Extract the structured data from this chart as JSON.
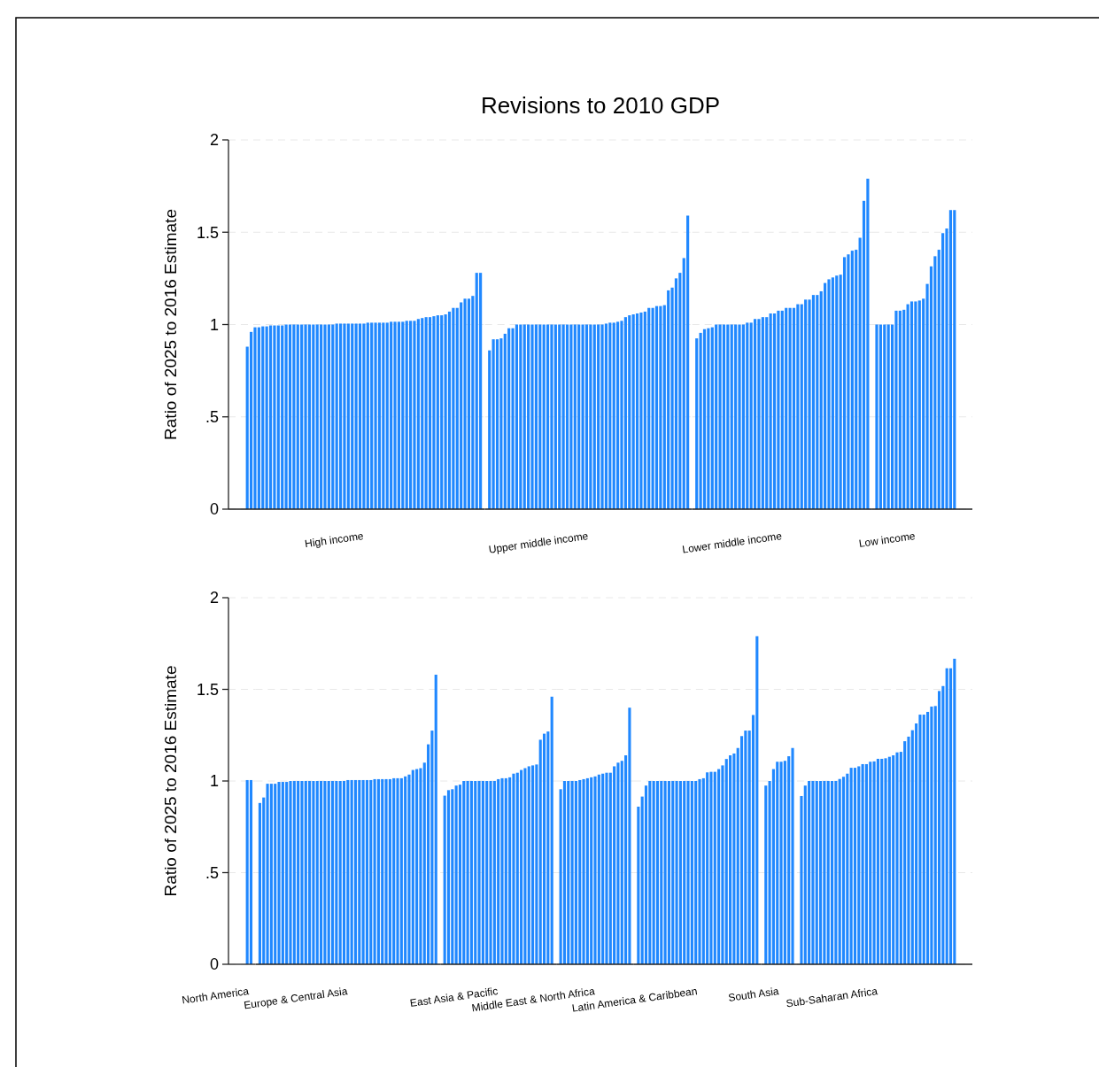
{
  "chart_data": [
    {
      "type": "bar",
      "ylabel": "Ratio of 2025 to 2016 Estimate",
      "xlabel": "High income",
      "color": "#2088ff",
      "ylim": [
        0,
        2
      ],
      "yticks": [
        0,
        {
          "value": 0.5,
          "label": ".5"
        },
        1,
        1.5,
        2
      ],
      "grid": "y",
      "tick_labels": "y",
      "categories": [
        null,
        null,
        null,
        null,
        null,
        null,
        null,
        null,
        null,
        null,
        null,
        null,
        null,
        null,
        null,
        null,
        null,
        null,
        null,
        null,
        null,
        null,
        null,
        null,
        null,
        null,
        null,
        null,
        null,
        null,
        null,
        null,
        null,
        null,
        null,
        null,
        null,
        null,
        null,
        null,
        null,
        null,
        null,
        null,
        null,
        null,
        null,
        null,
        null,
        null,
        null,
        null,
        null,
        null,
        null,
        null,
        null,
        null,
        null,
        null,
        null
      ],
      "values": [
        0.88,
        0.96,
        0.985,
        0.985,
        0.99,
        0.99,
        0.995,
        0.995,
        0.995,
        0.995,
        1.0,
        1.0,
        1.0,
        1.0,
        1.0,
        1.0,
        1.0,
        1.0,
        1.0,
        1.0,
        1.0,
        1.0,
        1.0,
        1.005,
        1.005,
        1.005,
        1.005,
        1.005,
        1.005,
        1.005,
        1.005,
        1.01,
        1.01,
        1.01,
        1.01,
        1.01,
        1.01,
        1.015,
        1.015,
        1.015,
        1.015,
        1.02,
        1.02,
        1.02,
        1.03,
        1.035,
        1.04,
        1.04,
        1.045,
        1.05,
        1.05,
        1.055,
        1.07,
        1.09,
        1.09,
        1.12,
        1.14,
        1.14,
        1.155,
        1.28,
        1.28
      ]
    },
    {
      "type": "bar",
      "title": "Revisions to 2010 GDP",
      "xlabel": "Upper middle income",
      "color": "#2088ff",
      "ylim": [
        0,
        2
      ],
      "grid": "y",
      "tick_labels": false,
      "categories": [
        null,
        null,
        null,
        null,
        null,
        null,
        null,
        null,
        null,
        null,
        null,
        null,
        null,
        null,
        null,
        null,
        null,
        null,
        null,
        null,
        null,
        null,
        null,
        null,
        null,
        null,
        null,
        null,
        null,
        null,
        null,
        null,
        null,
        null,
        null,
        null,
        null,
        null,
        null,
        null,
        null,
        null,
        null,
        null,
        null,
        null,
        null,
        null,
        null,
        null,
        null,
        null
      ],
      "values": [
        0.86,
        0.92,
        0.92,
        0.925,
        0.95,
        0.98,
        0.98,
        1.0,
        1.0,
        1.0,
        1.0,
        1.0,
        1.0,
        1.0,
        1.0,
        1.0,
        1.0,
        1.0,
        1.0,
        1.0,
        1.0,
        1.0,
        1.0,
        1.0,
        1.0,
        1.0,
        1.0,
        1.0,
        1.0,
        1.0,
        1.005,
        1.01,
        1.01,
        1.015,
        1.02,
        1.04,
        1.05,
        1.055,
        1.06,
        1.065,
        1.07,
        1.09,
        1.09,
        1.1,
        1.1,
        1.105,
        1.185,
        1.2,
        1.25,
        1.28,
        1.36,
        1.59
      ]
    },
    {
      "type": "bar",
      "xlabel": "Lower middle income",
      "color": "#2088ff",
      "ylim": [
        0,
        2
      ],
      "grid": "y",
      "tick_labels": false,
      "categories": [
        null,
        null,
        null,
        null,
        null,
        null,
        null,
        null,
        null,
        null,
        null,
        null,
        null,
        null,
        null,
        null,
        null,
        null,
        null,
        null,
        null,
        null,
        null,
        null,
        null,
        null,
        null,
        null,
        null,
        null,
        null,
        null,
        null,
        null,
        null,
        null,
        null,
        null,
        null,
        null,
        null,
        null,
        null,
        null,
        null
      ],
      "values": [
        0.925,
        0.955,
        0.975,
        0.98,
        0.985,
        1.0,
        1.0,
        1.0,
        1.0,
        1.0,
        1.0,
        1.0,
        1.0,
        1.01,
        1.01,
        1.03,
        1.03,
        1.04,
        1.04,
        1.06,
        1.06,
        1.075,
        1.075,
        1.09,
        1.09,
        1.09,
        1.11,
        1.11,
        1.135,
        1.135,
        1.16,
        1.16,
        1.18,
        1.225,
        1.245,
        1.255,
        1.265,
        1.27,
        1.365,
        1.38,
        1.4,
        1.405,
        1.47,
        1.67,
        1.79
      ]
    },
    {
      "type": "bar",
      "xlabel": "Low income",
      "color": "#2088ff",
      "ylim": [
        0,
        2
      ],
      "grid": "y",
      "tick_labels": false,
      "categories": [
        null,
        null,
        null,
        null,
        null,
        null,
        null,
        null,
        null,
        null,
        null,
        null,
        null,
        null,
        null,
        null,
        null,
        null,
        null,
        null,
        null
      ],
      "values": [
        1.0,
        1.0,
        1.0,
        1.0,
        1.0,
        1.075,
        1.075,
        1.08,
        1.11,
        1.125,
        1.125,
        1.13,
        1.14,
        1.22,
        1.315,
        1.37,
        1.405,
        1.495,
        1.52,
        1.62,
        1.62
      ]
    },
    {
      "type": "bar",
      "ylabel": "Ratio of 2025 to 2016 Estimate",
      "xlabel": "North America",
      "color": "#2088ff",
      "ylim": [
        0,
        2
      ],
      "yticks": [
        0,
        {
          "value": 0.5,
          "label": ".5"
        },
        1,
        1.5,
        2
      ],
      "grid": "y",
      "tick_labels": "y",
      "categories": [
        null,
        null
      ],
      "values": [
        1.005,
        1.005
      ]
    },
    {
      "type": "bar",
      "xlabel": "Europe & Central Asia",
      "color": "#2088ff",
      "ylim": [
        0,
        2
      ],
      "grid": "y",
      "tick_labels": false,
      "categories": [
        null,
        null,
        null,
        null,
        null,
        null,
        null,
        null,
        null,
        null,
        null,
        null,
        null,
        null,
        null,
        null,
        null,
        null,
        null,
        null,
        null,
        null,
        null,
        null,
        null,
        null,
        null,
        null,
        null,
        null,
        null,
        null,
        null,
        null,
        null,
        null,
        null,
        null,
        null,
        null,
        null,
        null,
        null,
        null,
        null,
        null,
        null
      ],
      "values": [
        0.88,
        0.91,
        0.985,
        0.985,
        0.985,
        0.995,
        0.995,
        0.995,
        1.0,
        1.0,
        1.0,
        1.0,
        1.0,
        1.0,
        1.0,
        1.0,
        1.0,
        1.0,
        1.0,
        1.0,
        1.0,
        1.0,
        1.0,
        1.005,
        1.005,
        1.005,
        1.005,
        1.005,
        1.005,
        1.005,
        1.01,
        1.01,
        1.01,
        1.01,
        1.01,
        1.015,
        1.015,
        1.015,
        1.025,
        1.035,
        1.06,
        1.065,
        1.07,
        1.1,
        1.2,
        1.275,
        1.58
      ]
    },
    {
      "type": "bar",
      "xlabel": "East Asia & Pacific",
      "color": "#2088ff",
      "ylim": [
        0,
        2
      ],
      "grid": "y",
      "tick_labels": false,
      "categories": [
        null,
        null,
        null,
        null,
        null,
        null,
        null,
        null,
        null,
        null,
        null,
        null,
        null,
        null,
        null,
        null,
        null,
        null,
        null,
        null,
        null,
        null,
        null,
        null,
        null,
        null,
        null,
        null,
        null
      ],
      "values": [
        0.92,
        0.95,
        0.955,
        0.975,
        0.98,
        1.0,
        1.0,
        1.0,
        1.0,
        1.0,
        1.0,
        1.0,
        1.0,
        1.0,
        1.01,
        1.015,
        1.015,
        1.02,
        1.04,
        1.045,
        1.06,
        1.07,
        1.08,
        1.085,
        1.09,
        1.225,
        1.258,
        1.27,
        1.46
      ]
    },
    {
      "type": "bar",
      "xlabel": "Middle East & North Africa",
      "color": "#2088ff",
      "ylim": [
        0,
        2
      ],
      "grid": "y",
      "tick_labels": false,
      "categories": [
        null,
        null,
        null,
        null,
        null,
        null,
        null,
        null,
        null,
        null,
        null,
        null,
        null,
        null,
        null,
        null,
        null,
        null,
        null
      ],
      "values": [
        0.955,
        1.0,
        1.0,
        1.0,
        1.0,
        1.005,
        1.01,
        1.015,
        1.02,
        1.025,
        1.035,
        1.04,
        1.045,
        1.045,
        1.08,
        1.1,
        1.11,
        1.14,
        1.4
      ]
    },
    {
      "type": "bar",
      "xlabel": "Latin America & Caribbean",
      "color": "#2088ff",
      "ylim": [
        0,
        2
      ],
      "grid": "y",
      "tick_labels": false,
      "categories": [
        null,
        null,
        null,
        null,
        null,
        null,
        null,
        null,
        null,
        null,
        null,
        null,
        null,
        null,
        null,
        null,
        null,
        null,
        null,
        null,
        null,
        null,
        null,
        null,
        null,
        null,
        null,
        null,
        null,
        null,
        null,
        null
      ],
      "values": [
        0.86,
        0.915,
        0.975,
        1.0,
        1.0,
        1.0,
        1.0,
        1.0,
        1.0,
        1.0,
        1.0,
        1.0,
        1.0,
        1.0,
        1.0,
        1.0,
        1.01,
        1.015,
        1.047,
        1.05,
        1.05,
        1.065,
        1.085,
        1.12,
        1.14,
        1.15,
        1.18,
        1.245,
        1.275,
        1.275,
        1.36,
        1.79
      ]
    },
    {
      "type": "bar",
      "xlabel": "South Asia",
      "color": "#2088ff",
      "ylim": [
        0,
        2
      ],
      "grid": "y",
      "tick_labels": false,
      "categories": [
        null,
        null,
        null,
        null,
        null,
        null,
        null,
        null
      ],
      "values": [
        0.975,
        1.0,
        1.065,
        1.105,
        1.105,
        1.11,
        1.135,
        1.18
      ]
    },
    {
      "type": "bar",
      "xlabel": "Sub-Saharan Africa",
      "color": "#2088ff",
      "ylim": [
        0,
        2
      ],
      "grid": "y",
      "tick_labels": false,
      "categories": [
        null,
        null,
        null,
        null,
        null,
        null,
        null,
        null,
        null,
        null,
        null,
        null,
        null,
        null,
        null,
        null,
        null,
        null,
        null,
        null,
        null,
        null,
        null,
        null,
        null,
        null,
        null,
        null,
        null,
        null,
        null,
        null,
        null,
        null,
        null,
        null,
        null,
        null,
        null,
        null,
        null
      ],
      "values": [
        0.918,
        0.975,
        1.0,
        1.0,
        1.0,
        1.0,
        1.0,
        1.0,
        1.0,
        1.0,
        1.011,
        1.023,
        1.04,
        1.072,
        1.072,
        1.08,
        1.092,
        1.092,
        1.105,
        1.107,
        1.121,
        1.121,
        1.124,
        1.132,
        1.14,
        1.156,
        1.159,
        1.217,
        1.242,
        1.277,
        1.314,
        1.362,
        1.362,
        1.377,
        1.406,
        1.409,
        1.491,
        1.518,
        1.615,
        1.615,
        1.667
      ]
    }
  ]
}
